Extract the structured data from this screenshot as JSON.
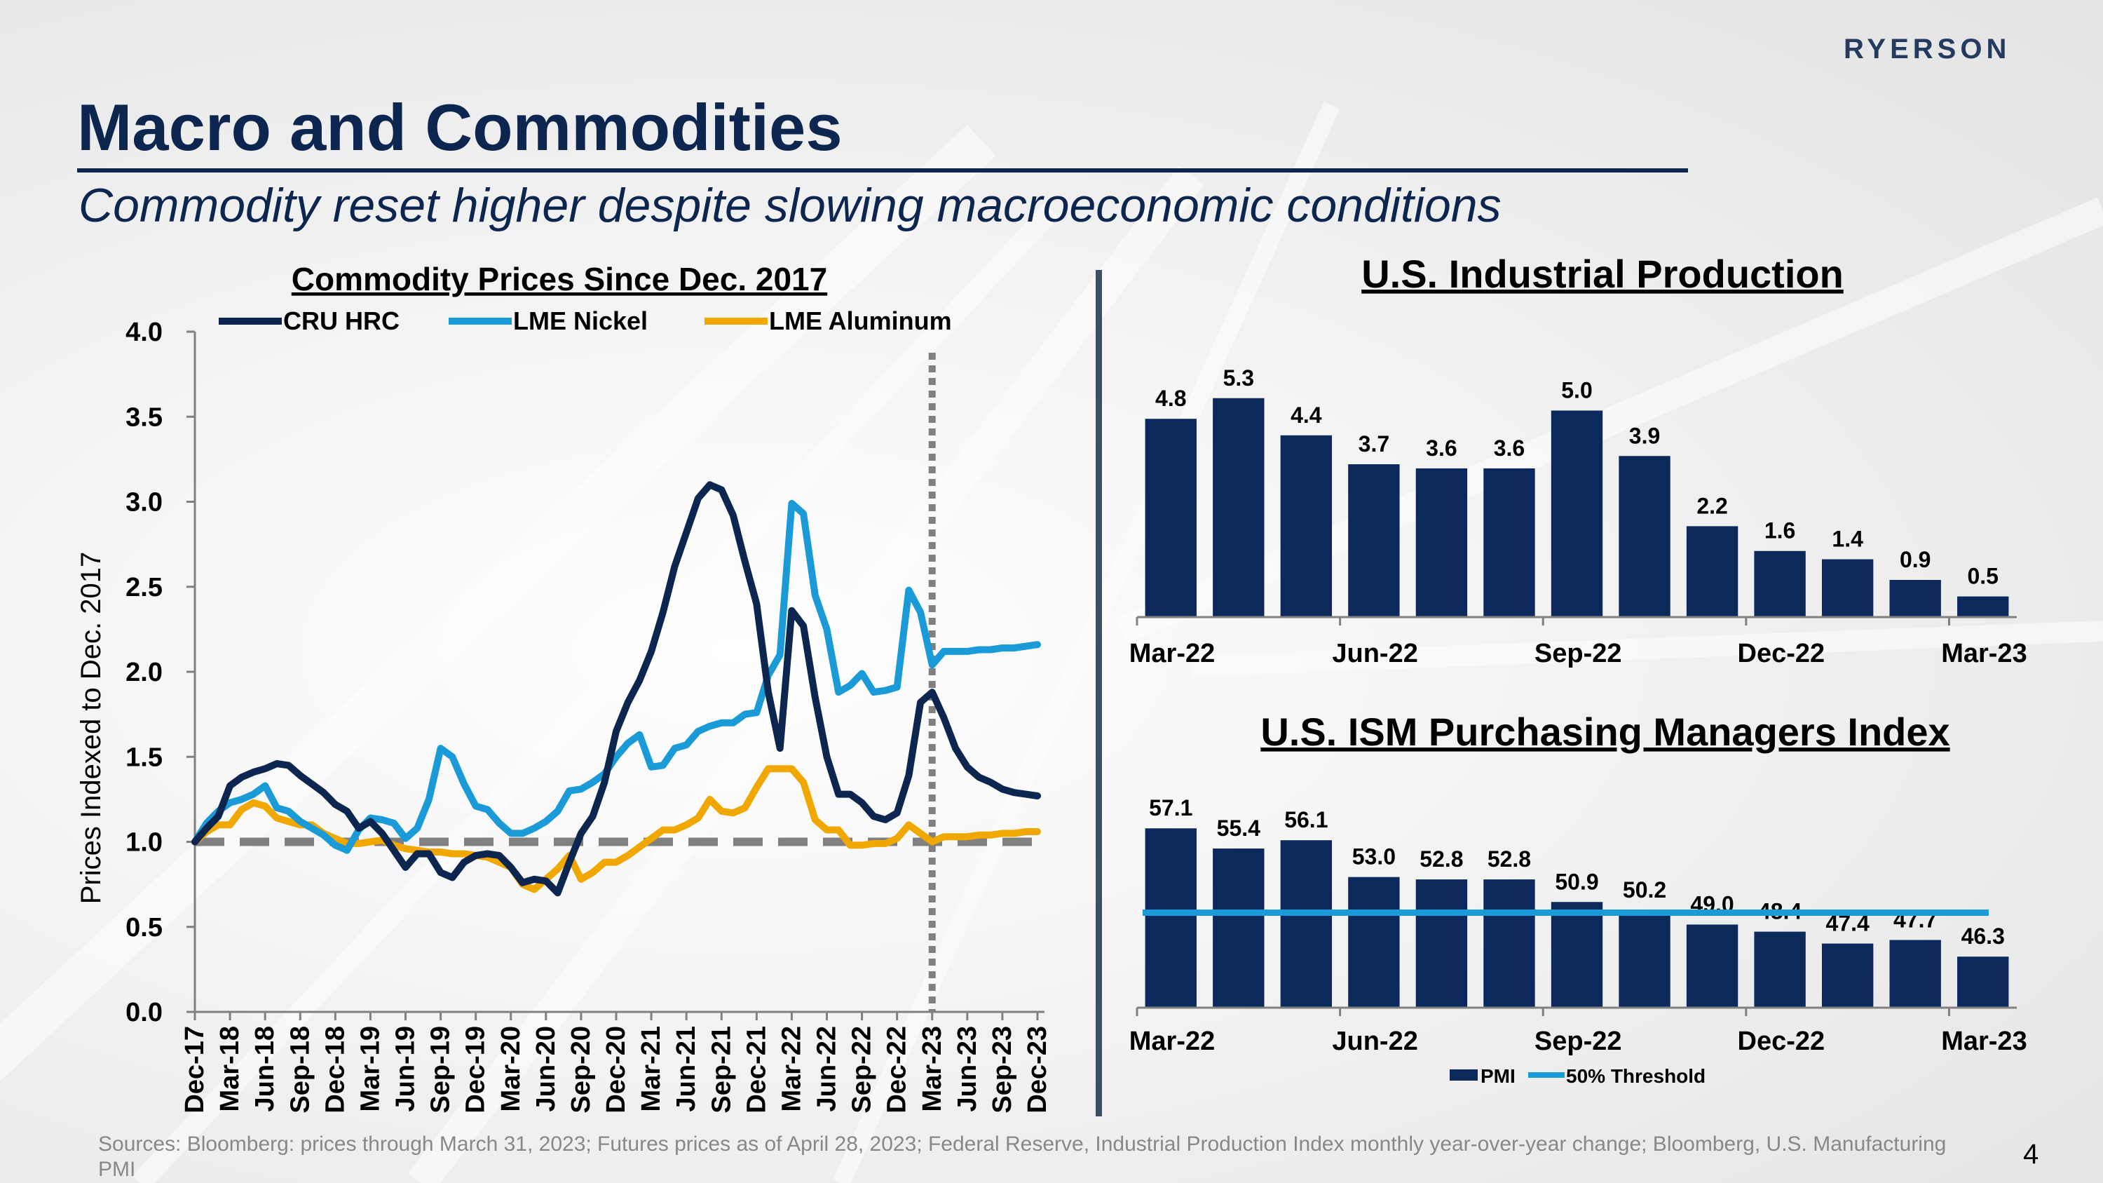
{
  "brand": "RYERSON",
  "title": "Macro and Commodities",
  "subtitle": "Commodity reset higher despite slowing macroeconomic conditions",
  "sources": "Sources: Bloomberg: prices through March 31, 2023; Futures prices as of April 28, 2023; Federal Reserve, Industrial Production Index monthly year-over-year change; Bloomberg, U.S. Manufacturing PMI",
  "page_number": "4",
  "colors": {
    "navy": "#0d2650",
    "bar": "#0b2a5b",
    "nickel": "#1a9ad6",
    "aluminum": "#f0a800",
    "reference": "#808080",
    "threshold": "#1a9ad6"
  },
  "chart_data": [
    {
      "type": "line",
      "title": "Commodity Prices Since Dec. 2017",
      "ylabel": "Prices Indexed to Dec. 2017",
      "xlabel": "",
      "ylim": [
        0,
        4.0
      ],
      "yticks": [
        "0.0",
        "0.5",
        "1.0",
        "1.5",
        "2.0",
        "2.5",
        "3.0",
        "3.5",
        "4.0"
      ],
      "x_tick_labels": [
        "Dec-17",
        "Mar-18",
        "Jun-18",
        "Sep-18",
        "Dec-18",
        "Mar-19",
        "Jun-19",
        "Sep-19",
        "Dec-19",
        "Mar-20",
        "Jun-20",
        "Sep-20",
        "Dec-20",
        "Mar-21",
        "Jun-21",
        "Sep-21",
        "Dec-21",
        "Mar-22",
        "Jun-22",
        "Sep-22",
        "Dec-22",
        "Mar-23",
        "Jun-23",
        "Sep-23",
        "Dec-23"
      ],
      "x_start": "Dec-17",
      "x_end": "Dec-23",
      "reference_line": 1.0,
      "forecast_divider": "Mar-23",
      "legend": "top",
      "series": [
        {
          "name": "CRU HRC",
          "color": "#0d2650",
          "values": [
            1.0,
            1.08,
            1.15,
            1.33,
            1.38,
            1.41,
            1.43,
            1.46,
            1.45,
            1.39,
            1.34,
            1.29,
            1.22,
            1.18,
            1.08,
            1.12,
            1.05,
            0.95,
            0.85,
            0.93,
            0.93,
            0.82,
            0.79,
            0.88,
            0.92,
            0.93,
            0.92,
            0.85,
            0.76,
            0.78,
            0.77,
            0.7,
            0.88,
            1.05,
            1.15,
            1.35,
            1.65,
            1.82,
            1.95,
            2.12,
            2.35,
            2.62,
            2.82,
            3.02,
            3.1,
            3.07,
            2.92,
            2.65,
            2.4,
            1.88,
            1.55,
            2.36,
            2.27,
            1.85,
            1.5,
            1.28,
            1.28,
            1.23,
            1.15,
            1.13,
            1.17,
            1.39,
            1.82,
            1.88,
            1.73,
            1.55,
            1.44,
            1.38,
            1.35,
            1.31,
            1.29,
            1.28,
            1.27
          ]
        },
        {
          "name": "LME Nickel",
          "color": "#1a9ad6",
          "values": [
            1.0,
            1.11,
            1.18,
            1.23,
            1.25,
            1.28,
            1.33,
            1.2,
            1.18,
            1.12,
            1.08,
            1.04,
            0.98,
            0.95,
            1.07,
            1.14,
            1.13,
            1.11,
            1.02,
            1.08,
            1.25,
            1.55,
            1.5,
            1.34,
            1.21,
            1.19,
            1.11,
            1.05,
            1.05,
            1.08,
            1.12,
            1.18,
            1.3,
            1.31,
            1.35,
            1.4,
            1.5,
            1.58,
            1.63,
            1.44,
            1.45,
            1.55,
            1.57,
            1.65,
            1.68,
            1.7,
            1.7,
            1.75,
            1.76,
            1.98,
            2.1,
            2.99,
            2.93,
            2.45,
            2.25,
            1.88,
            1.92,
            1.99,
            1.88,
            1.89,
            1.91,
            2.48,
            2.35,
            2.04,
            2.12,
            2.12,
            2.12,
            2.13,
            2.13,
            2.14,
            2.14,
            2.15,
            2.16
          ]
        },
        {
          "name": "LME Aluminum",
          "color": "#f0a800",
          "values": [
            1.0,
            1.06,
            1.1,
            1.1,
            1.19,
            1.23,
            1.21,
            1.14,
            1.12,
            1.1,
            1.1,
            1.05,
            1.02,
            0.99,
            0.99,
            1.0,
            1.01,
            0.98,
            0.96,
            0.95,
            0.94,
            0.94,
            0.93,
            0.93,
            0.92,
            0.91,
            0.88,
            0.85,
            0.75,
            0.72,
            0.78,
            0.84,
            0.92,
            0.78,
            0.82,
            0.88,
            0.88,
            0.92,
            0.97,
            1.02,
            1.07,
            1.07,
            1.1,
            1.14,
            1.25,
            1.18,
            1.17,
            1.2,
            1.32,
            1.43,
            1.43,
            1.43,
            1.35,
            1.13,
            1.07,
            1.07,
            0.98,
            0.98,
            0.99,
            0.99,
            1.02,
            1.1,
            1.05,
            1.0,
            1.03,
            1.03,
            1.03,
            1.04,
            1.04,
            1.05,
            1.05,
            1.06,
            1.06
          ]
        }
      ]
    },
    {
      "type": "bar",
      "title": "U.S. Industrial Production",
      "categories": [
        "Mar-22",
        "Apr-22",
        "May-22",
        "Jun-22",
        "Jul-22",
        "Aug-22",
        "Sep-22",
        "Oct-22",
        "Nov-22",
        "Dec-22",
        "Jan-23",
        "Feb-23",
        "Mar-23"
      ],
      "x_tick_labels": [
        "Mar-22",
        "Jun-22",
        "Sep-22",
        "Dec-22",
        "Mar-23"
      ],
      "values": [
        4.8,
        5.3,
        4.4,
        3.7,
        3.6,
        3.6,
        5.0,
        3.9,
        2.2,
        1.6,
        1.4,
        0.9,
        0.5
      ],
      "data_labels": [
        "4.8",
        "5.3",
        "4.4",
        "3.7",
        "3.6",
        "3.6",
        "5.0",
        "3.9",
        "2.2",
        "1.6",
        "1.4",
        "0.9",
        "0.5"
      ],
      "ylim": [
        0,
        5.5
      ],
      "color": "#0b2a5b"
    },
    {
      "type": "bar",
      "title": "U.S. ISM Purchasing Managers Index",
      "categories": [
        "Mar-22",
        "Apr-22",
        "May-22",
        "Jun-22",
        "Jul-22",
        "Aug-22",
        "Sep-22",
        "Oct-22",
        "Nov-22",
        "Dec-22",
        "Jan-23",
        "Feb-23",
        "Mar-23"
      ],
      "x_tick_labels": [
        "Mar-22",
        "Jun-22",
        "Sep-22",
        "Dec-22",
        "Mar-23"
      ],
      "values": [
        57.1,
        55.4,
        56.1,
        53.0,
        52.8,
        52.8,
        50.9,
        50.2,
        49.0,
        48.4,
        47.4,
        47.7,
        46.3
      ],
      "data_labels": [
        "57.1",
        "55.4",
        "56.1",
        "53.0",
        "52.8",
        "52.8",
        "50.9",
        "50.2",
        "49.0",
        "48.4",
        "47.4",
        "47.7",
        "46.3"
      ],
      "threshold": 50,
      "ylim": [
        42,
        58
      ],
      "legend": "bottom",
      "series": [
        {
          "name": "PMI",
          "color": "#0b2a5b"
        },
        {
          "name": "50% Threshold",
          "color": "#1a9ad6"
        }
      ]
    }
  ]
}
